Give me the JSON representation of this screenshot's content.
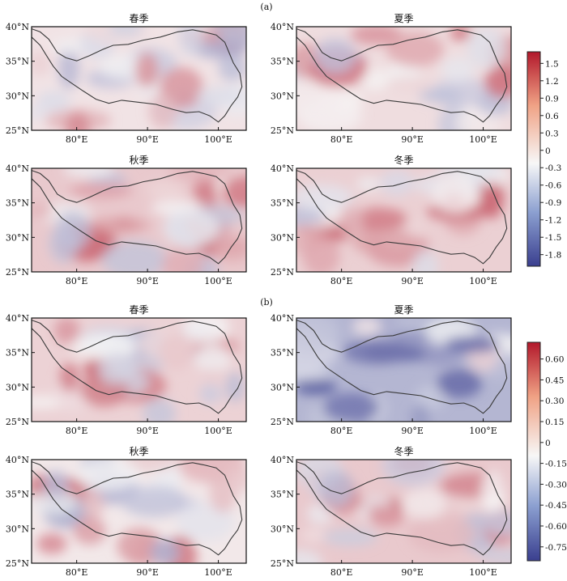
{
  "figure": {
    "groups": [
      {
        "label": "(a)",
        "colorbar_ticks": [
          "1.5",
          "1.2",
          "0.9",
          "0.6",
          "0.3",
          "0",
          "-0.3",
          "-0.6",
          "-0.9",
          "-1.2",
          "-1.5",
          "-1.8"
        ],
        "colorbar_range": [
          -2.0,
          1.7
        ],
        "panels": [
          {
            "title": "春季",
            "mean": 0.15
          },
          {
            "title": "夏季",
            "mean": 0.2
          },
          {
            "title": "秋季",
            "mean": 0.35
          },
          {
            "title": "冬季",
            "mean": 0.3
          }
        ]
      },
      {
        "label": "(b)",
        "colorbar_ticks": [
          "0.60",
          "0.45",
          "0.30",
          "0.15",
          "0",
          "-0.15",
          "-0.30",
          "-0.45",
          "-0.60",
          "-0.75"
        ],
        "colorbar_range": [
          -0.85,
          0.72
        ],
        "panels": [
          {
            "title": "春季",
            "mean": 0.12
          },
          {
            "title": "夏季",
            "mean": -0.3
          },
          {
            "title": "秋季",
            "mean": 0.05
          },
          {
            "title": "冬季",
            "mean": 0.15
          }
        ]
      }
    ],
    "x_ticks": [
      "80°E",
      "90°E",
      "100°E"
    ],
    "y_ticks": [
      "40°N",
      "35°N",
      "30°N",
      "25°N"
    ],
    "colors": {
      "high": "#b2182b",
      "mid": "#f7f7f7",
      "low": "#2c3e8c"
    }
  }
}
